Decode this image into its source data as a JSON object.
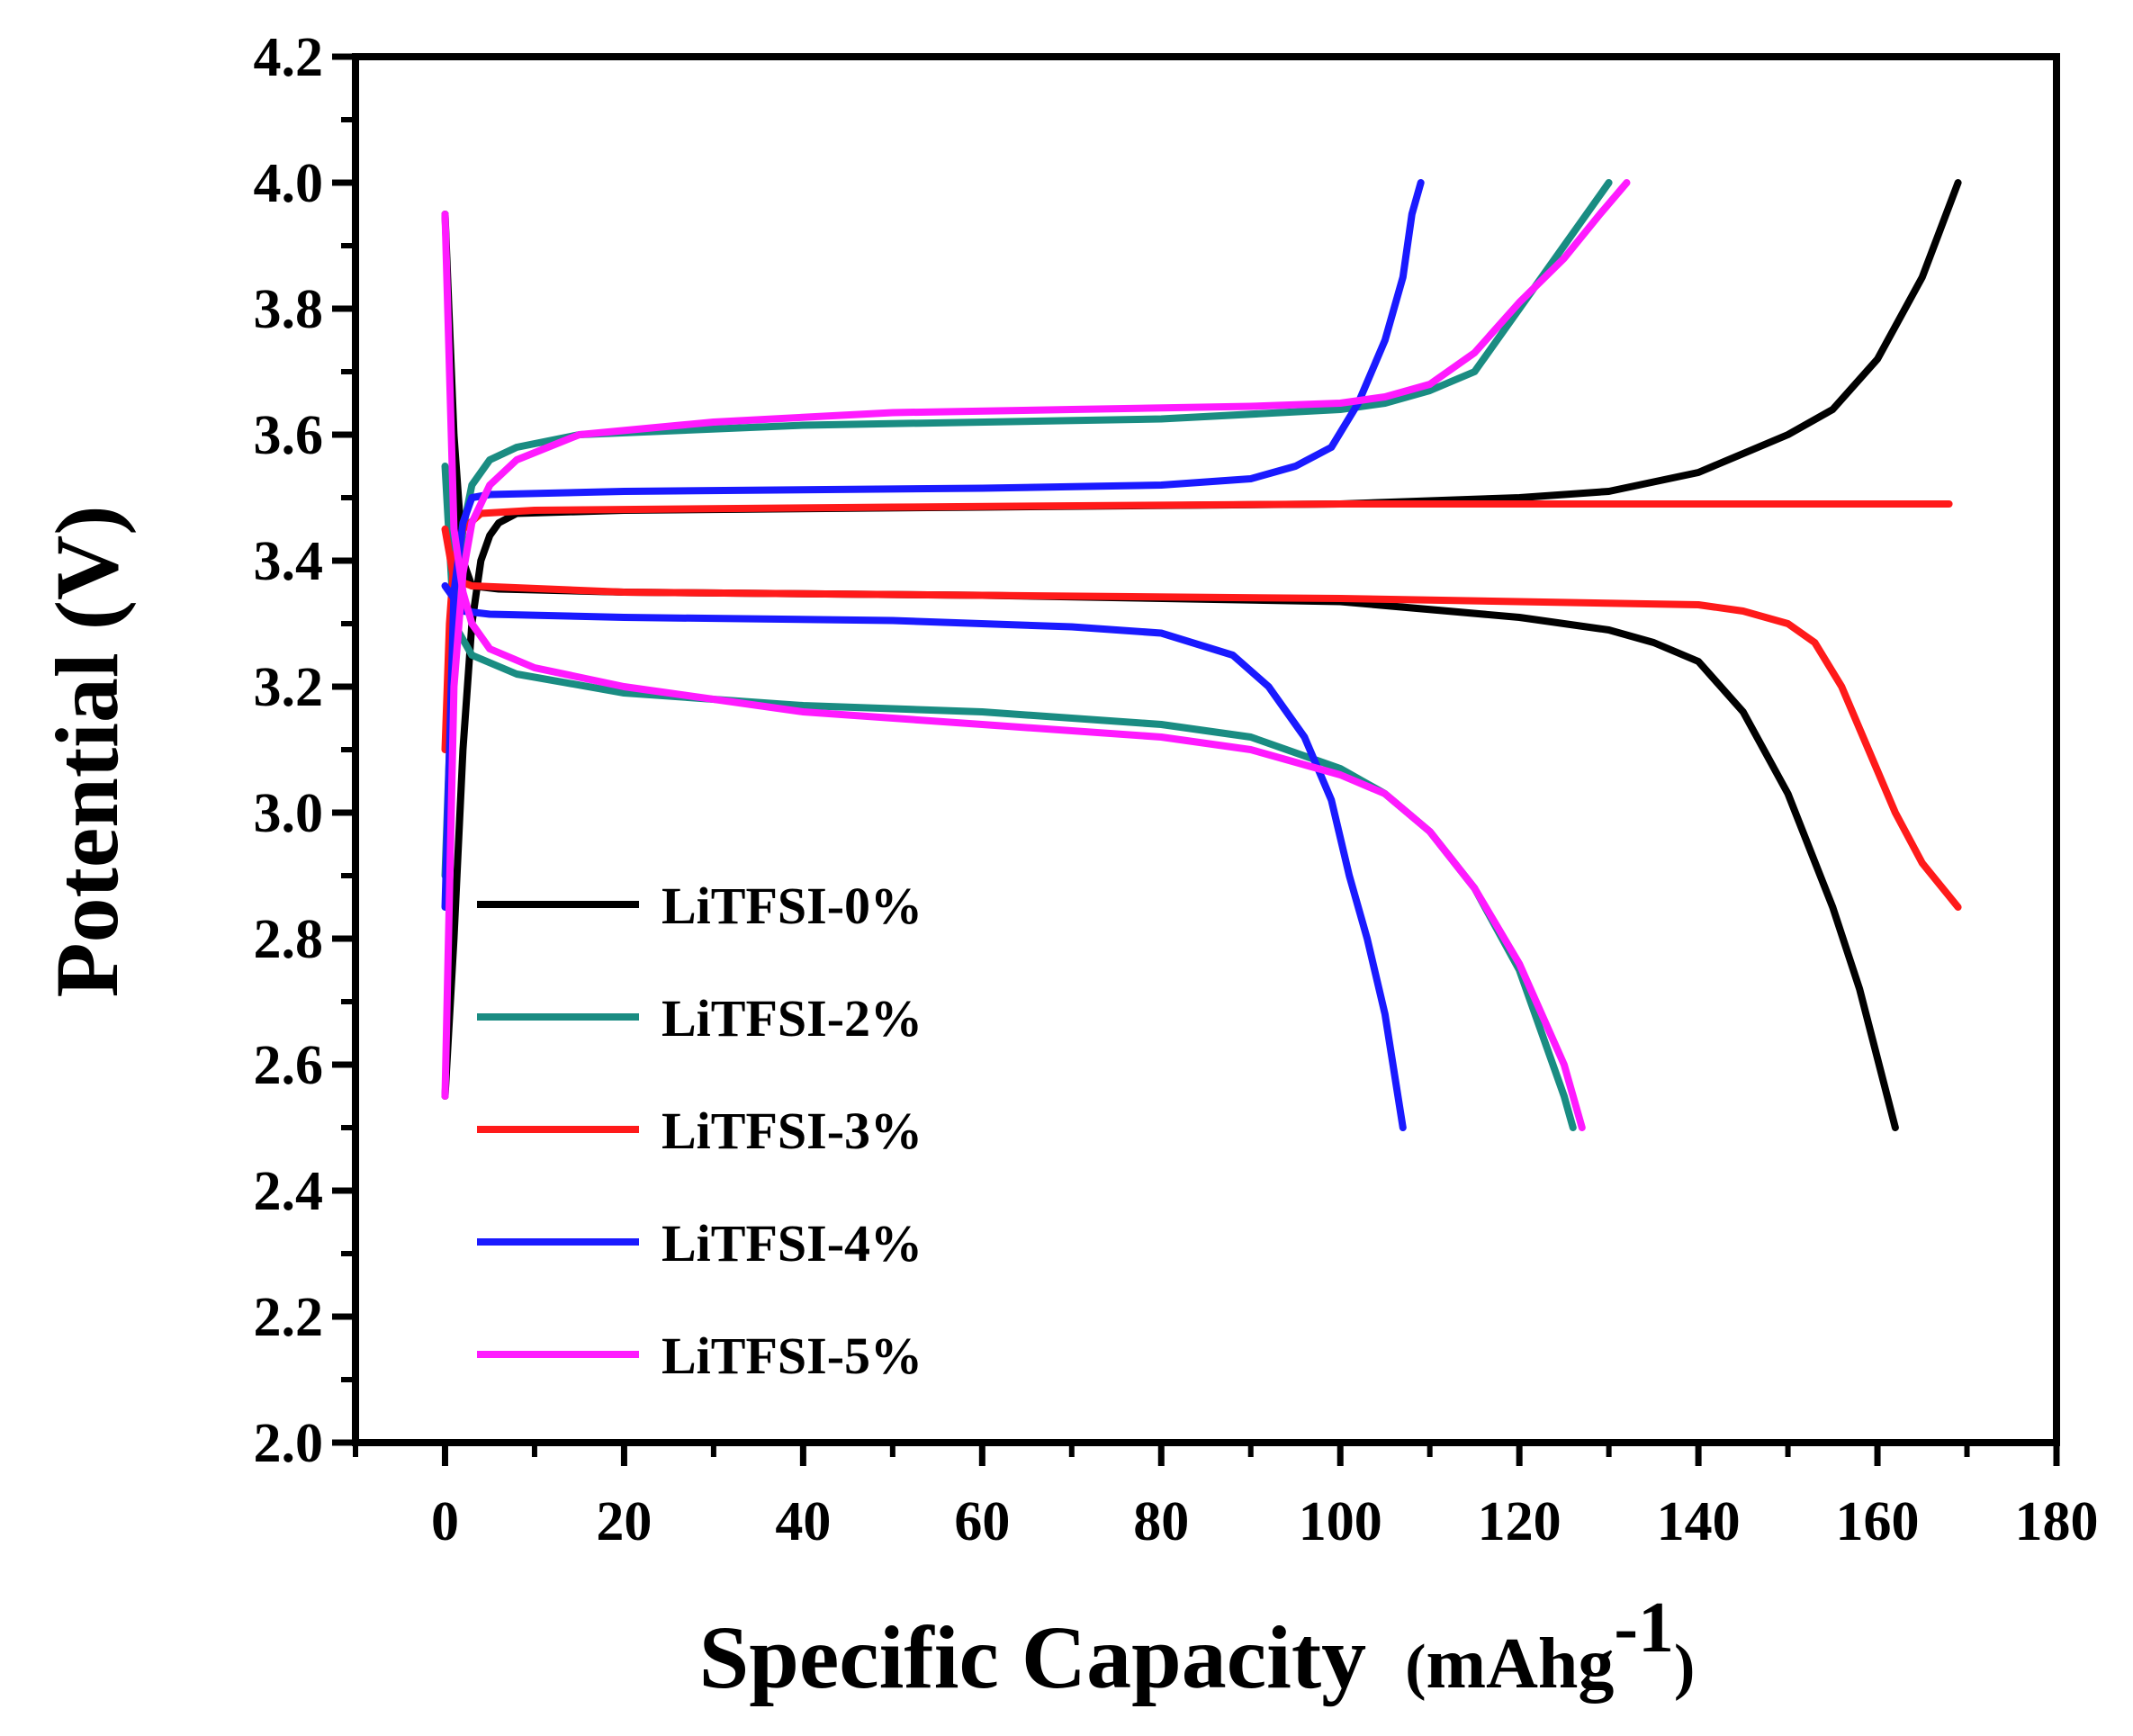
{
  "chart_data": {
    "type": "line",
    "title": "",
    "xlabel": "Specific Capacity",
    "xlabel_unit_main": "mAhg",
    "xlabel_unit_sup": "-1",
    "ylabel": "Potential (V)",
    "xlim": [
      -10,
      180
    ],
    "ylim": [
      2.0,
      4.2
    ],
    "xticks": [
      0,
      20,
      40,
      60,
      80,
      100,
      120,
      140,
      160,
      180
    ],
    "yticks": [
      2.0,
      2.2,
      2.4,
      2.6,
      2.8,
      3.0,
      3.2,
      3.4,
      3.6,
      3.8,
      4.0,
      4.2
    ],
    "xtick_labels": [
      "0",
      "20",
      "40",
      "60",
      "80",
      "100",
      "120",
      "140",
      "160",
      "180"
    ],
    "ytick_labels": [
      "2.0",
      "2.2",
      "2.4",
      "2.6",
      "2.8",
      "3.0",
      "3.2",
      "3.4",
      "3.6",
      "3.8",
      "4.0",
      "4.2"
    ],
    "legend_position": "middle-left",
    "series": [
      {
        "name": "LiTFSI-0%",
        "color": "#000000",
        "charge": [
          [
            0,
            2.55
          ],
          [
            1,
            2.8
          ],
          [
            2,
            3.1
          ],
          [
            3,
            3.3
          ],
          [
            4,
            3.4
          ],
          [
            5,
            3.44
          ],
          [
            6,
            3.46
          ],
          [
            8,
            3.475
          ],
          [
            20,
            3.48
          ],
          [
            60,
            3.485
          ],
          [
            100,
            3.49
          ],
          [
            120,
            3.5
          ],
          [
            130,
            3.51
          ],
          [
            140,
            3.54
          ],
          [
            150,
            3.6
          ],
          [
            155,
            3.64
          ],
          [
            160,
            3.72
          ],
          [
            165,
            3.85
          ],
          [
            169,
            4.0
          ]
        ],
        "discharge": [
          [
            0,
            3.95
          ],
          [
            1,
            3.6
          ],
          [
            2,
            3.4
          ],
          [
            3,
            3.36
          ],
          [
            6,
            3.355
          ],
          [
            20,
            3.35
          ],
          [
            60,
            3.345
          ],
          [
            100,
            3.335
          ],
          [
            120,
            3.31
          ],
          [
            130,
            3.29
          ],
          [
            135,
            3.27
          ],
          [
            140,
            3.24
          ],
          [
            145,
            3.16
          ],
          [
            150,
            3.03
          ],
          [
            155,
            2.85
          ],
          [
            158,
            2.72
          ],
          [
            162,
            2.5
          ]
        ]
      },
      {
        "name": "LiTFSI-2%",
        "color": "#1a8c82",
        "charge": [
          [
            0,
            2.9
          ],
          [
            1,
            3.3
          ],
          [
            2,
            3.45
          ],
          [
            3,
            3.52
          ],
          [
            5,
            3.56
          ],
          [
            8,
            3.58
          ],
          [
            15,
            3.6
          ],
          [
            40,
            3.615
          ],
          [
            80,
            3.625
          ],
          [
            100,
            3.64
          ],
          [
            105,
            3.65
          ],
          [
            110,
            3.67
          ],
          [
            115,
            3.7
          ],
          [
            120,
            3.8
          ],
          [
            125,
            3.9
          ],
          [
            130,
            4.0
          ]
        ],
        "discharge": [
          [
            0,
            3.55
          ],
          [
            1,
            3.3
          ],
          [
            3,
            3.25
          ],
          [
            8,
            3.22
          ],
          [
            20,
            3.19
          ],
          [
            40,
            3.17
          ],
          [
            60,
            3.16
          ],
          [
            80,
            3.14
          ],
          [
            90,
            3.12
          ],
          [
            100,
            3.07
          ],
          [
            105,
            3.03
          ],
          [
            110,
            2.97
          ],
          [
            115,
            2.88
          ],
          [
            120,
            2.75
          ],
          [
            125,
            2.55
          ],
          [
            126,
            2.5
          ]
        ]
      },
      {
        "name": "LiTFSI-3%",
        "color": "#ff1a1a",
        "charge": [
          [
            0,
            3.1
          ],
          [
            0.5,
            3.3
          ],
          [
            1,
            3.4
          ],
          [
            2,
            3.45
          ],
          [
            4,
            3.475
          ],
          [
            10,
            3.48
          ],
          [
            50,
            3.485
          ],
          [
            100,
            3.49
          ],
          [
            140,
            3.49
          ],
          [
            168,
            3.49
          ]
        ],
        "discharge": [
          [
            0,
            3.45
          ],
          [
            1,
            3.37
          ],
          [
            3,
            3.36
          ],
          [
            20,
            3.35
          ],
          [
            60,
            3.345
          ],
          [
            100,
            3.34
          ],
          [
            140,
            3.33
          ],
          [
            145,
            3.32
          ],
          [
            150,
            3.3
          ],
          [
            153,
            3.27
          ],
          [
            156,
            3.2
          ],
          [
            159,
            3.1
          ],
          [
            162,
            3.0
          ],
          [
            165,
            2.92
          ],
          [
            169,
            2.85
          ]
        ]
      },
      {
        "name": "LiTFSI-4%",
        "color": "#1a1aff",
        "charge": [
          [
            0,
            2.85
          ],
          [
            1,
            3.35
          ],
          [
            2,
            3.46
          ],
          [
            3,
            3.5
          ],
          [
            5,
            3.505
          ],
          [
            20,
            3.51
          ],
          [
            60,
            3.515
          ],
          [
            80,
            3.52
          ],
          [
            90,
            3.53
          ],
          [
            95,
            3.55
          ],
          [
            99,
            3.58
          ],
          [
            102,
            3.65
          ],
          [
            105,
            3.75
          ],
          [
            107,
            3.85
          ],
          [
            108,
            3.95
          ],
          [
            109,
            4.0
          ]
        ],
        "discharge": [
          [
            0,
            3.36
          ],
          [
            2,
            3.32
          ],
          [
            5,
            3.315
          ],
          [
            20,
            3.31
          ],
          [
            50,
            3.305
          ],
          [
            70,
            3.295
          ],
          [
            80,
            3.285
          ],
          [
            88,
            3.25
          ],
          [
            92,
            3.2
          ],
          [
            96,
            3.12
          ],
          [
            99,
            3.02
          ],
          [
            101,
            2.9
          ],
          [
            103,
            2.8
          ],
          [
            105,
            2.68
          ],
          [
            107,
            2.5
          ]
        ]
      },
      {
        "name": "LiTFSI-5%",
        "color": "#ff1aff",
        "charge": [
          [
            0,
            2.55
          ],
          [
            1,
            3.2
          ],
          [
            2,
            3.38
          ],
          [
            3,
            3.46
          ],
          [
            5,
            3.52
          ],
          [
            8,
            3.56
          ],
          [
            15,
            3.6
          ],
          [
            30,
            3.62
          ],
          [
            50,
            3.635
          ],
          [
            70,
            3.64
          ],
          [
            90,
            3.645
          ],
          [
            100,
            3.65
          ],
          [
            105,
            3.66
          ],
          [
            110,
            3.68
          ],
          [
            115,
            3.73
          ],
          [
            120,
            3.81
          ],
          [
            125,
            3.88
          ],
          [
            129,
            3.95
          ],
          [
            132,
            4.0
          ]
        ],
        "discharge": [
          [
            0,
            3.95
          ],
          [
            1,
            3.45
          ],
          [
            2,
            3.35
          ],
          [
            3,
            3.3
          ],
          [
            5,
            3.26
          ],
          [
            10,
            3.23
          ],
          [
            20,
            3.2
          ],
          [
            40,
            3.16
          ],
          [
            60,
            3.14
          ],
          [
            80,
            3.12
          ],
          [
            90,
            3.1
          ],
          [
            100,
            3.06
          ],
          [
            105,
            3.03
          ],
          [
            110,
            2.97
          ],
          [
            115,
            2.88
          ],
          [
            120,
            2.76
          ],
          [
            125,
            2.6
          ],
          [
            127,
            2.5
          ]
        ]
      }
    ]
  }
}
